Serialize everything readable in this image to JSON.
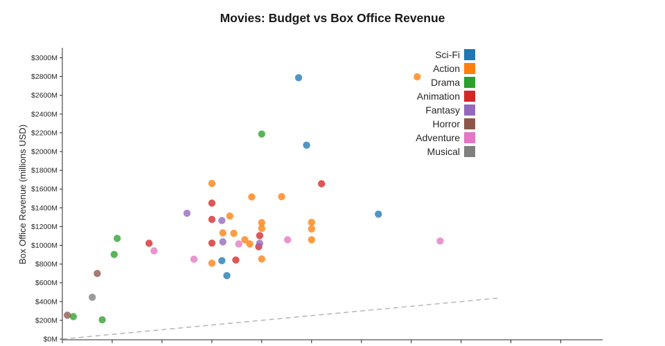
{
  "chart_data": {
    "type": "scatter",
    "title": "Movies: Budget vs Box Office Revenue",
    "xlabel": "",
    "ylabel": "Box Office Revenue (millions USD)",
    "grid": false,
    "legend_position": "upper right inside axes",
    "point_opacity": 0.78,
    "point_format": [
      "budget_millions_usd",
      "revenue_millions_usd"
    ],
    "x_axis": {
      "min": 0,
      "max": 542,
      "tick_step": 50,
      "tick_max": 500,
      "tick_labels_visible": false
    },
    "y_axis": {
      "min": 0,
      "max": 3100,
      "tick_step": 200,
      "tick_max": 3000,
      "tick_labels": [
        "$0M",
        "$200M",
        "$400M",
        "$600M",
        "$800M",
        "$1000M",
        "$1200M",
        "$1400M",
        "$1600M",
        "$1800M",
        "$2000M",
        "$2200M",
        "$2400M",
        "$2600M",
        "$2800M",
        "$3000M"
      ]
    },
    "reference_line": {
      "style": "dashed",
      "color": "#b3b3b3",
      "from": [
        0,
        0
      ],
      "to": [
        440,
        440
      ],
      "meaning": "y = x break-even"
    },
    "series": [
      {
        "name": "Sci-Fi",
        "color": "#1f77b4",
        "points": [
          [
            237,
            2788
          ],
          [
            245,
            2068
          ],
          [
            317,
            1333
          ],
          [
            160,
            836
          ],
          [
            165,
            677
          ]
        ]
      },
      {
        "name": "Action",
        "color": "#ff7f0e",
        "points": [
          [
            356,
            2798
          ],
          [
            150,
            1660
          ],
          [
            190,
            1516
          ],
          [
            220,
            1519
          ],
          [
            168,
            1312
          ],
          [
            200,
            1242
          ],
          [
            200,
            1180
          ],
          [
            250,
            1245
          ],
          [
            250,
            1175
          ],
          [
            250,
            1060
          ],
          [
            172,
            1128
          ],
          [
            161,
            1133
          ],
          [
            183,
            1060
          ],
          [
            188,
            1015
          ],
          [
            150,
            810
          ],
          [
            200,
            855
          ]
        ]
      },
      {
        "name": "Drama",
        "color": "#2ca02c",
        "points": [
          [
            200,
            2187
          ],
          [
            55,
            1074
          ],
          [
            52,
            903
          ],
          [
            40,
            205
          ],
          [
            11,
            240
          ]
        ]
      },
      {
        "name": "Animation",
        "color": "#d62728",
        "points": [
          [
            260,
            1657
          ],
          [
            150,
            1450
          ],
          [
            150,
            1276
          ],
          [
            150,
            1024
          ],
          [
            87,
            1022
          ],
          [
            198,
            1104
          ],
          [
            197,
            985
          ],
          [
            174,
            844
          ]
        ]
      },
      {
        "name": "Fantasy",
        "color": "#9467bd",
        "points": [
          [
            125,
            1342
          ],
          [
            160,
            1264
          ],
          [
            161,
            1037
          ],
          [
            198,
            1022
          ]
        ]
      },
      {
        "name": "Horror",
        "color": "#8c564b",
        "points": [
          [
            35,
            700
          ],
          [
            5,
            255
          ]
        ]
      },
      {
        "name": "Adventure",
        "color": "#e377c2",
        "points": [
          [
            92,
            941
          ],
          [
            132,
            852
          ],
          [
            177,
            1015
          ],
          [
            226,
            1059
          ],
          [
            379,
            1046
          ]
        ]
      },
      {
        "name": "Musical",
        "color": "#7f7f7f",
        "points": [
          [
            30,
            446
          ]
        ]
      }
    ]
  }
}
